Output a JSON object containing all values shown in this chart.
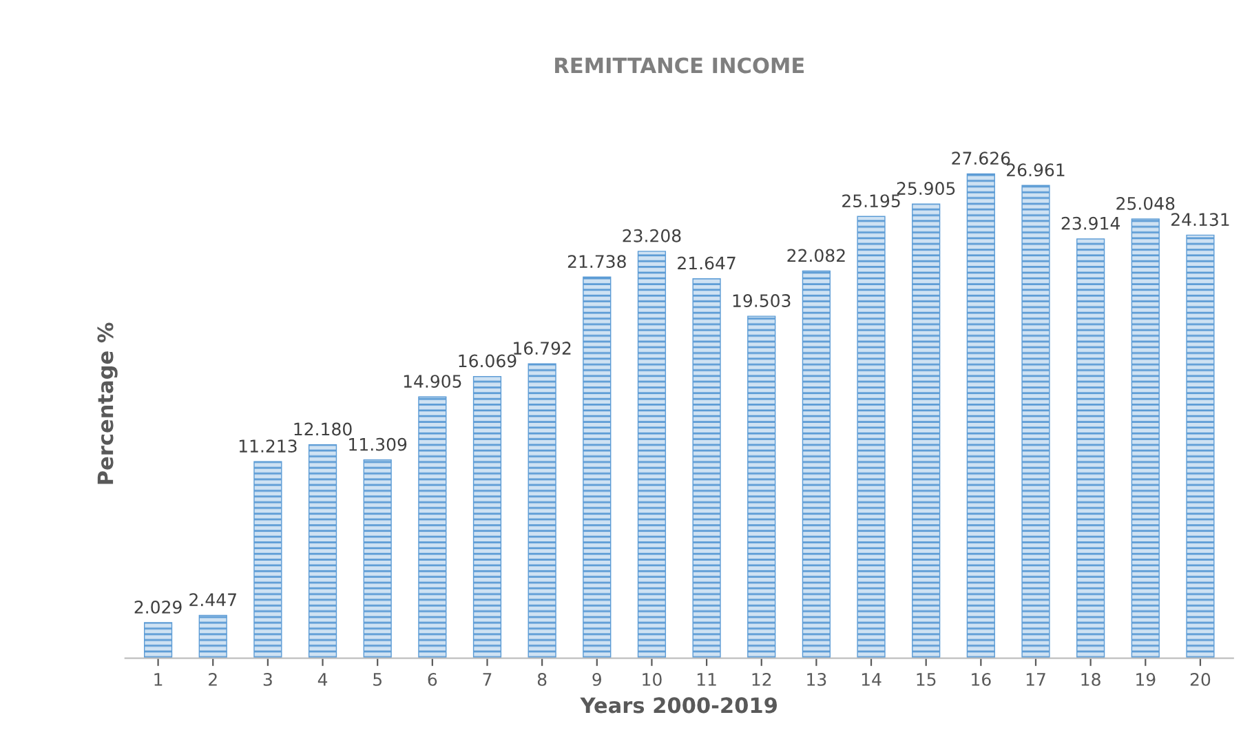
{
  "chart_data": {
    "type": "bar",
    "title": "REMITTANCE INCOME",
    "xlabel": "Years 2000-2019",
    "ylabel": "Percentage %",
    "categories": [
      "1",
      "2",
      "3",
      "4",
      "5",
      "6",
      "7",
      "8",
      "9",
      "10",
      "11",
      "12",
      "13",
      "14",
      "15",
      "16",
      "17",
      "18",
      "19",
      "20"
    ],
    "values": [
      2.029,
      2.447,
      11.213,
      12.18,
      11.309,
      14.905,
      16.069,
      16.792,
      21.738,
      23.208,
      21.647,
      19.503,
      22.082,
      25.195,
      25.905,
      27.626,
      26.961,
      23.914,
      25.048,
      24.131
    ],
    "value_labels": [
      "2.029",
      "2.447",
      "11.213",
      "12.180",
      "11.309",
      "14.905",
      "16.069",
      "16.792",
      "21.738",
      "23.208",
      "21.647",
      "19.503",
      "22.082",
      "25.195",
      "25.905",
      "27.626",
      "26.961",
      "23.914",
      "25.048",
      "24.131"
    ],
    "color": "#5b9bd5",
    "tick_labels": "x",
    "grid": false,
    "legend": false
  }
}
